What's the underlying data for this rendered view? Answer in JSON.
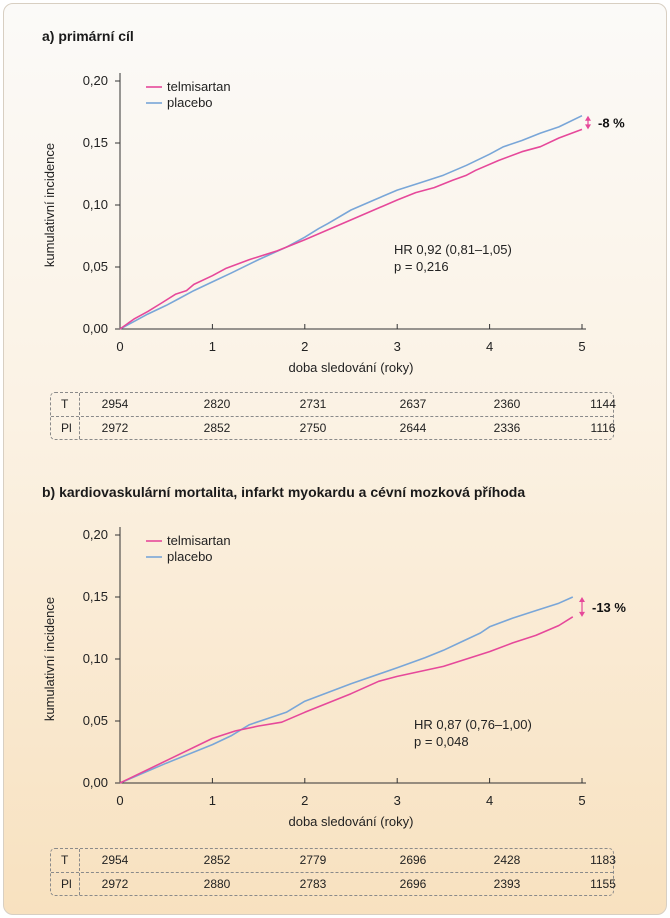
{
  "charts": [
    {
      "title": "a) primární cíl",
      "legend": [
        "telmisartan",
        "placebo"
      ],
      "annotation_hr": "HR 0,92 (0,81–1,05)",
      "annotation_p": "p = 0,216",
      "diff_label": "-8 %",
      "xlabel": "doba sledování (roky)",
      "ylabel": "kumulativní incidence",
      "x_ticks": [
        "0",
        "1",
        "2",
        "3",
        "4",
        "5"
      ],
      "y_ticks": [
        "0,00",
        "0,05",
        "0,10",
        "0,15",
        "0,20"
      ],
      "risk_table": {
        "rows": [
          {
            "label": "T",
            "values": [
              "2954",
              "2820",
              "2731",
              "2637",
              "2360",
              "1144"
            ]
          },
          {
            "label": "Pl",
            "values": [
              "2972",
              "2852",
              "2750",
              "2644",
              "2336",
              "1116"
            ]
          }
        ]
      }
    },
    {
      "title": "b) kardiovaskulární mortalita, infarkt myokardu a cévní mozková příhoda",
      "legend": [
        "telmisartan",
        "placebo"
      ],
      "annotation_hr": "HR 0,87 (0,76–1,00)",
      "annotation_p": "p = 0,048",
      "diff_label": "-13 %",
      "xlabel": "doba sledování (roky)",
      "ylabel": "kumulativní incidence",
      "x_ticks": [
        "0",
        "1",
        "2",
        "3",
        "4",
        "5"
      ],
      "y_ticks": [
        "0,00",
        "0,05",
        "0,10",
        "0,15",
        "0,20"
      ],
      "risk_table": {
        "rows": [
          {
            "label": "T",
            "values": [
              "2954",
              "2852",
              "2779",
              "2696",
              "2428",
              "1183"
            ]
          },
          {
            "label": "Pl",
            "values": [
              "2972",
              "2880",
              "2783",
              "2696",
              "2393",
              "1155"
            ]
          }
        ]
      }
    }
  ],
  "colors": {
    "telmisartan": "#e6489a",
    "placebo": "#79a6d8",
    "axis": "#333333",
    "arrow": "#e6489a"
  },
  "chart_data": [
    {
      "type": "line",
      "title": "a) primární cíl",
      "xlabel": "doba sledování (roky)",
      "ylabel": "kumulativní incidence",
      "xlim": [
        0,
        5
      ],
      "ylim": [
        0,
        0.2
      ],
      "grid": false,
      "legend_position": "top-left",
      "series": [
        {
          "name": "telmisartan",
          "x": [
            0,
            0.15,
            0.3,
            0.45,
            0.6,
            0.72,
            0.8,
            1.0,
            1.15,
            1.4,
            1.7,
            2.0,
            2.5,
            3.0,
            3.2,
            3.4,
            3.6,
            3.75,
            3.85,
            4.1,
            4.35,
            4.55,
            4.75,
            5.0
          ],
          "y": [
            0,
            0.008,
            0.014,
            0.021,
            0.028,
            0.031,
            0.036,
            0.043,
            0.049,
            0.056,
            0.063,
            0.072,
            0.088,
            0.104,
            0.11,
            0.114,
            0.12,
            0.124,
            0.128,
            0.136,
            0.143,
            0.147,
            0.154,
            0.161
          ]
        },
        {
          "name": "placebo",
          "x": [
            0,
            0.15,
            0.3,
            0.5,
            0.65,
            0.8,
            1.0,
            1.2,
            1.5,
            1.8,
            2.0,
            2.15,
            2.25,
            2.5,
            2.75,
            3.0,
            3.25,
            3.5,
            3.75,
            4.0,
            4.15,
            4.35,
            4.55,
            4.75,
            5.0
          ],
          "y": [
            0,
            0.006,
            0.012,
            0.019,
            0.025,
            0.031,
            0.038,
            0.045,
            0.056,
            0.066,
            0.074,
            0.081,
            0.085,
            0.096,
            0.104,
            0.112,
            0.118,
            0.124,
            0.132,
            0.141,
            0.147,
            0.152,
            0.158,
            0.163,
            0.172
          ]
        }
      ],
      "annotations": [
        "HR 0,92 (0,81–1,05)",
        "p = 0,216",
        "-8 %"
      ]
    },
    {
      "type": "line",
      "title": "b) kardiovaskulární mortalita, infarkt myokardu a cévní mozková příhoda",
      "xlabel": "doba sledování (roky)",
      "ylabel": "kumulativní incidence",
      "xlim": [
        0,
        5
      ],
      "ylim": [
        0,
        0.2
      ],
      "grid": false,
      "legend_position": "top-left",
      "series": [
        {
          "name": "telmisartan",
          "x": [
            0,
            0.5,
            1.0,
            1.25,
            1.5,
            1.75,
            2.0,
            2.5,
            2.8,
            3.0,
            3.25,
            3.5,
            3.75,
            4.0,
            4.25,
            4.5,
            4.75,
            4.9
          ],
          "y": [
            0,
            0.018,
            0.036,
            0.042,
            0.046,
            0.049,
            0.057,
            0.072,
            0.082,
            0.086,
            0.09,
            0.094,
            0.1,
            0.106,
            0.113,
            0.119,
            0.127,
            0.134
          ]
        },
        {
          "name": "placebo",
          "x": [
            0,
            0.5,
            1.0,
            1.2,
            1.4,
            1.6,
            1.8,
            2.0,
            2.5,
            3.0,
            3.3,
            3.5,
            3.7,
            3.9,
            4.0,
            4.25,
            4.5,
            4.75,
            4.9
          ],
          "y": [
            0,
            0.016,
            0.031,
            0.038,
            0.047,
            0.052,
            0.057,
            0.066,
            0.08,
            0.093,
            0.101,
            0.107,
            0.114,
            0.121,
            0.126,
            0.133,
            0.139,
            0.145,
            0.15
          ]
        }
      ],
      "annotations": [
        "HR 0,87 (0,76–1,00)",
        "p = 0,048",
        "-13 %"
      ]
    }
  ]
}
